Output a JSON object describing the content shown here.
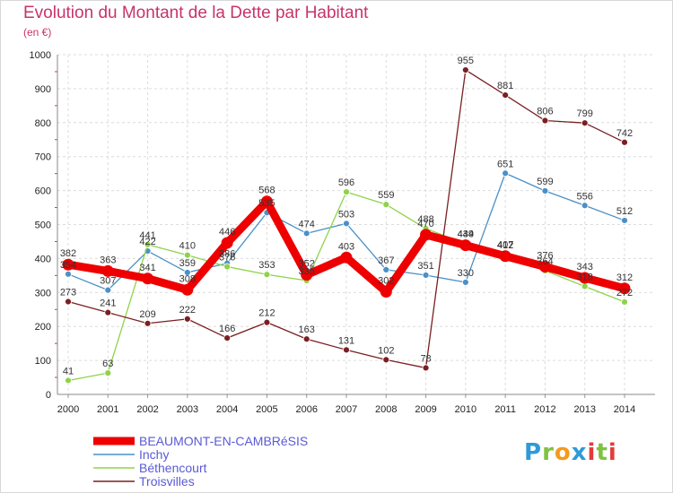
{
  "header": {
    "title": "Evolution du Montant de la Dette par Habitant",
    "subtitle": "(en €)"
  },
  "logo": {
    "text": "Proxiti"
  },
  "chart_data": {
    "type": "line",
    "title": "Evolution du Montant de la Dette par Habitant",
    "ylabel": "(en €)",
    "xlabel": "",
    "x": [
      "2000",
      "2001",
      "2002",
      "2003",
      "2004",
      "2005",
      "2006",
      "2007",
      "2008",
      "2009",
      "2010",
      "2011",
      "2012",
      "2013",
      "2014"
    ],
    "ylim": [
      0,
      1000
    ],
    "yticks": [
      0,
      100,
      200,
      300,
      400,
      500,
      600,
      700,
      800,
      900,
      1000
    ],
    "grid": true,
    "legend_position": "bottom-left",
    "series": [
      {
        "name": "BEAUMONT-EN-CAMBRéSIS",
        "color": "#ee0000",
        "thick": true,
        "values": [
          382,
          363,
          341,
          308,
          446,
          568,
          352,
          403,
          302,
          470,
          439,
          407,
          376,
          343,
          312
        ]
      },
      {
        "name": "Inchy",
        "color": "#4a90c8",
        "thick": false,
        "values": [
          354,
          307,
          422,
          359,
          386,
          535,
          474,
          503,
          367,
          351,
          330,
          651,
          599,
          556,
          512
        ]
      },
      {
        "name": "Béthencourt",
        "color": "#8ed34a",
        "thick": false,
        "values": [
          41,
          63,
          441,
          410,
          376,
          353,
          335,
          596,
          559,
          488,
          444,
          412,
          364,
          318,
          272
        ]
      },
      {
        "name": "Troisvilles",
        "color": "#7a1f22",
        "thick": false,
        "values": [
          273,
          241,
          209,
          222,
          166,
          212,
          163,
          131,
          102,
          78,
          955,
          881,
          806,
          799,
          742
        ]
      }
    ]
  }
}
